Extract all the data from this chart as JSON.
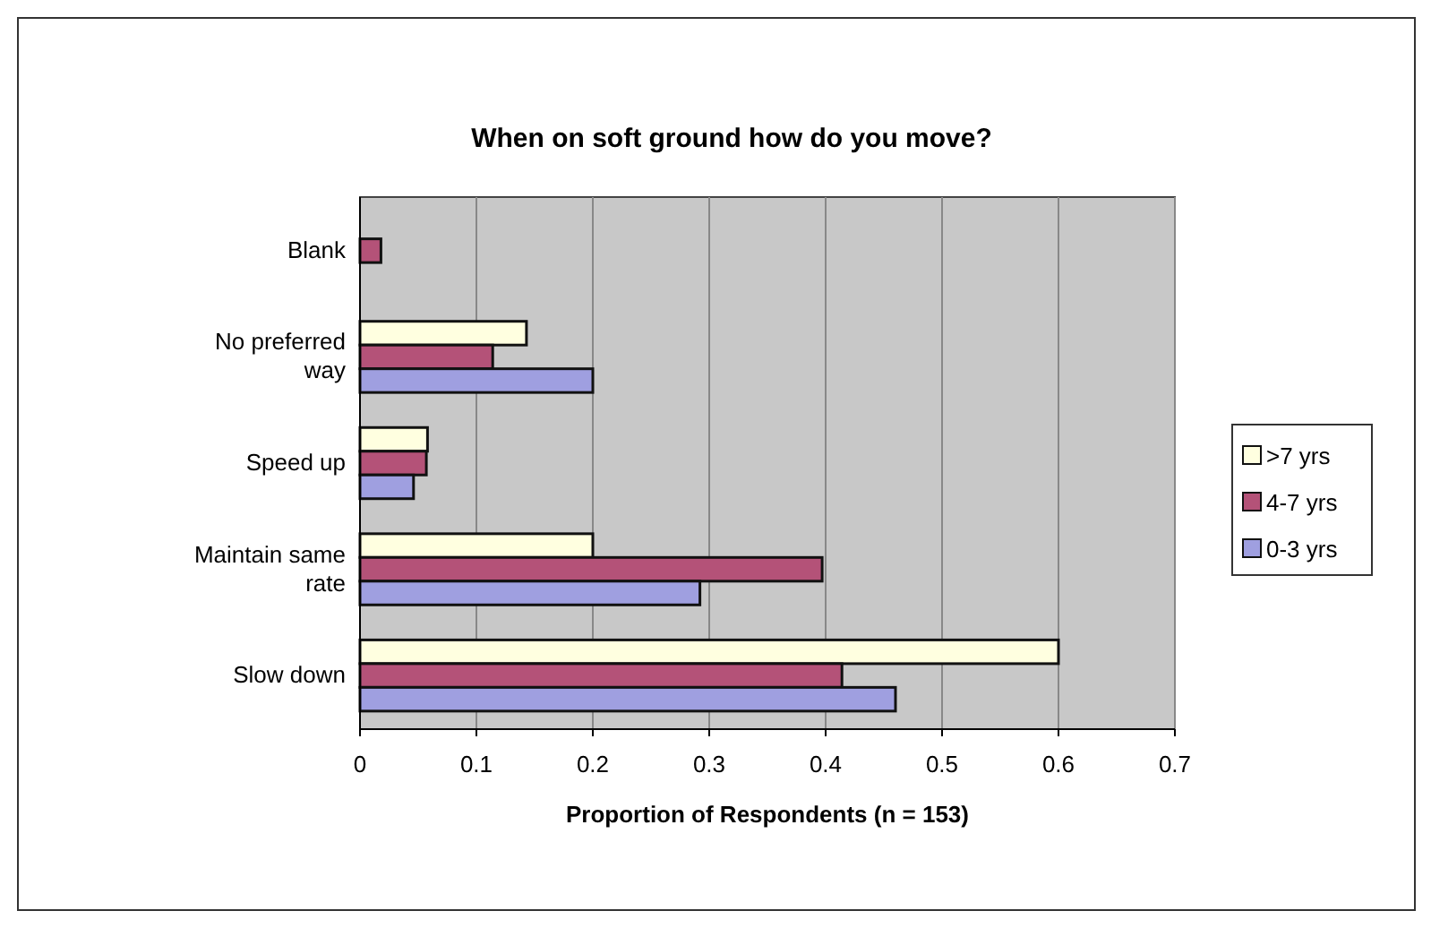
{
  "chart_data": {
    "type": "bar",
    "orientation": "horizontal",
    "title": "When on soft ground how do you move?",
    "xlabel": "Proportion of Respondents (n = 153)",
    "categories": [
      "Blank",
      "No preferred way",
      "Speed up",
      "Maintain same rate",
      "Slow down"
    ],
    "series": [
      {
        "name": ">7 yrs",
        "color": "#ffffe0",
        "values": [
          0,
          0.143,
          0.058,
          0.2,
          0.6
        ]
      },
      {
        "name": "4-7 yrs",
        "color": "#b45278",
        "values": [
          0.018,
          0.114,
          0.057,
          0.397,
          0.414
        ]
      },
      {
        "name": "0-3 yrs",
        "color": "#9f9fe0",
        "values": [
          0,
          0.2,
          0.046,
          0.292,
          0.46
        ]
      }
    ],
    "xlim": [
      0,
      0.7
    ],
    "xticks": [
      0,
      0.1,
      0.2,
      0.3,
      0.4,
      0.5,
      0.6,
      0.7
    ],
    "grid": "x",
    "legend": "right"
  }
}
